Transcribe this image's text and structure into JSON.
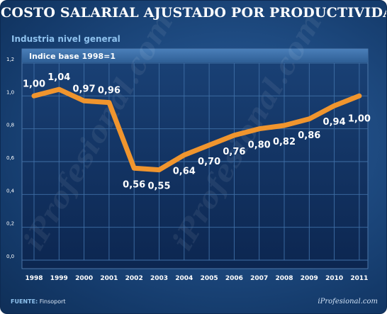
{
  "chart_data": {
    "type": "line",
    "title": "COSTO SALARIAL AJUSTADO POR PRODUCTIVIDAD",
    "subtitle": "Industria nivel general",
    "band_label": "Indice base 1998=1",
    "x": [
      "1998",
      "1999",
      "2000",
      "2001",
      "2002",
      "2003",
      "2004",
      "2005",
      "2006",
      "2007",
      "2008",
      "2009",
      "2010",
      "2011"
    ],
    "values": [
      1.0,
      1.04,
      0.97,
      0.96,
      0.56,
      0.55,
      0.64,
      0.7,
      0.76,
      0.8,
      0.82,
      0.86,
      0.94,
      1.0
    ],
    "data_labels": [
      "1,00",
      "1,04",
      "0,97",
      "0,96",
      "0,56",
      "0,55",
      "0,64",
      "0,70",
      "0,76",
      "0,80",
      "0,82",
      "0,86",
      "0,94",
      "1,00"
    ],
    "ylim": [
      0,
      1.2
    ],
    "yticks": [
      0,
      0.2,
      0.4,
      0.6,
      0.8,
      1.0,
      1.2
    ],
    "ytick_labels": [
      "0,0",
      "0,2",
      "0,4",
      "0,6",
      "0,8",
      "1,0",
      "1,2"
    ],
    "line_color": "#f0952e",
    "grid": true,
    "xlabel": "",
    "ylabel": ""
  },
  "footer": {
    "source_label": "FUENTE:",
    "source_value": "Finsoport",
    "brand": "iProfesional.com",
    "watermark": "iProfesional.com"
  }
}
